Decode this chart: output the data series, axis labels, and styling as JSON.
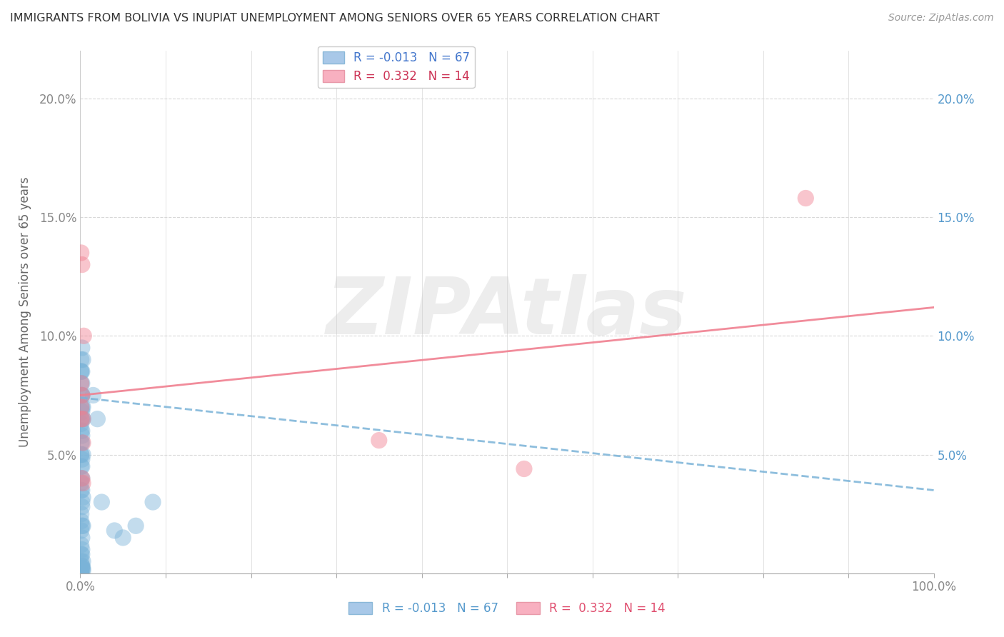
{
  "title": "IMMIGRANTS FROM BOLIVIA VS INUPIAT UNEMPLOYMENT AMONG SENIORS OVER 65 YEARS CORRELATION CHART",
  "source": "Source: ZipAtlas.com",
  "ylabel": "Unemployment Among Seniors over 65 years",
  "xlim": [
    0,
    1.0
  ],
  "ylim": [
    0,
    0.22
  ],
  "blue_color": "#7ab3d8",
  "pink_color": "#f08090",
  "blue_scatter_x": [
    0.001,
    0.002,
    0.001,
    0.002,
    0.003,
    0.001,
    0.002,
    0.001,
    0.002,
    0.001,
    0.002,
    0.001,
    0.003,
    0.002,
    0.001,
    0.002,
    0.001,
    0.002,
    0.001,
    0.003,
    0.002,
    0.001,
    0.002,
    0.001,
    0.002,
    0.001,
    0.002,
    0.001,
    0.002,
    0.003,
    0.001,
    0.002,
    0.001,
    0.002,
    0.001,
    0.002,
    0.003,
    0.001,
    0.002,
    0.001,
    0.002,
    0.001,
    0.003,
    0.002,
    0.001,
    0.002,
    0.001,
    0.002,
    0.001,
    0.002,
    0.003,
    0.001,
    0.002,
    0.001,
    0.003,
    0.002,
    0.001,
    0.002,
    0.001,
    0.003,
    0.015,
    0.02,
    0.025,
    0.04,
    0.05,
    0.065,
    0.085
  ],
  "blue_scatter_y": [
    0.09,
    0.095,
    0.085,
    0.085,
    0.09,
    0.08,
    0.075,
    0.085,
    0.08,
    0.075,
    0.075,
    0.07,
    0.07,
    0.07,
    0.065,
    0.068,
    0.06,
    0.065,
    0.063,
    0.065,
    0.06,
    0.055,
    0.058,
    0.05,
    0.055,
    0.05,
    0.048,
    0.045,
    0.045,
    0.05,
    0.04,
    0.04,
    0.038,
    0.035,
    0.035,
    0.03,
    0.032,
    0.025,
    0.028,
    0.022,
    0.02,
    0.018,
    0.02,
    0.015,
    0.012,
    0.01,
    0.008,
    0.008,
    0.005,
    0.003,
    0.005,
    0.0,
    0.002,
    0.0,
    0.002,
    0.003,
    0.0,
    0.002,
    0.0,
    0.001,
    0.075,
    0.065,
    0.03,
    0.018,
    0.015,
    0.02,
    0.03
  ],
  "pink_scatter_x": [
    0.001,
    0.002,
    0.001,
    0.003,
    0.001,
    0.002,
    0.001,
    0.003,
    0.002,
    0.003,
    0.35,
    0.52,
    0.004,
    0.85
  ],
  "pink_scatter_y": [
    0.135,
    0.13,
    0.08,
    0.065,
    0.07,
    0.075,
    0.065,
    0.055,
    0.04,
    0.038,
    0.056,
    0.044,
    0.1,
    0.158
  ],
  "blue_trend_x": [
    0.0,
    1.0
  ],
  "blue_trend_y": [
    0.074,
    0.035
  ],
  "pink_trend_x": [
    0.0,
    1.0
  ],
  "pink_trend_y": [
    0.075,
    0.112
  ],
  "yticks": [
    0.05,
    0.1,
    0.15,
    0.2
  ],
  "ytick_labels_left": [
    "5.0%",
    "10.0%",
    "15.0%",
    "20.0%"
  ],
  "ytick_labels_right": [
    "5.0%",
    "10.0%",
    "15.0%",
    "20.0%"
  ],
  "xtick_labels_left": "0.0%",
  "xtick_labels_right": "100.0%",
  "legend_label_blue": "R = -0.013   N = 67",
  "legend_label_pink": "R =  0.332   N = 14",
  "legend_blue_face": "#a8c8e8",
  "legend_pink_face": "#f8b0c0",
  "watermark": "ZIPAtlas",
  "background_color": "#ffffff",
  "grid_color": "#d8d8d8"
}
